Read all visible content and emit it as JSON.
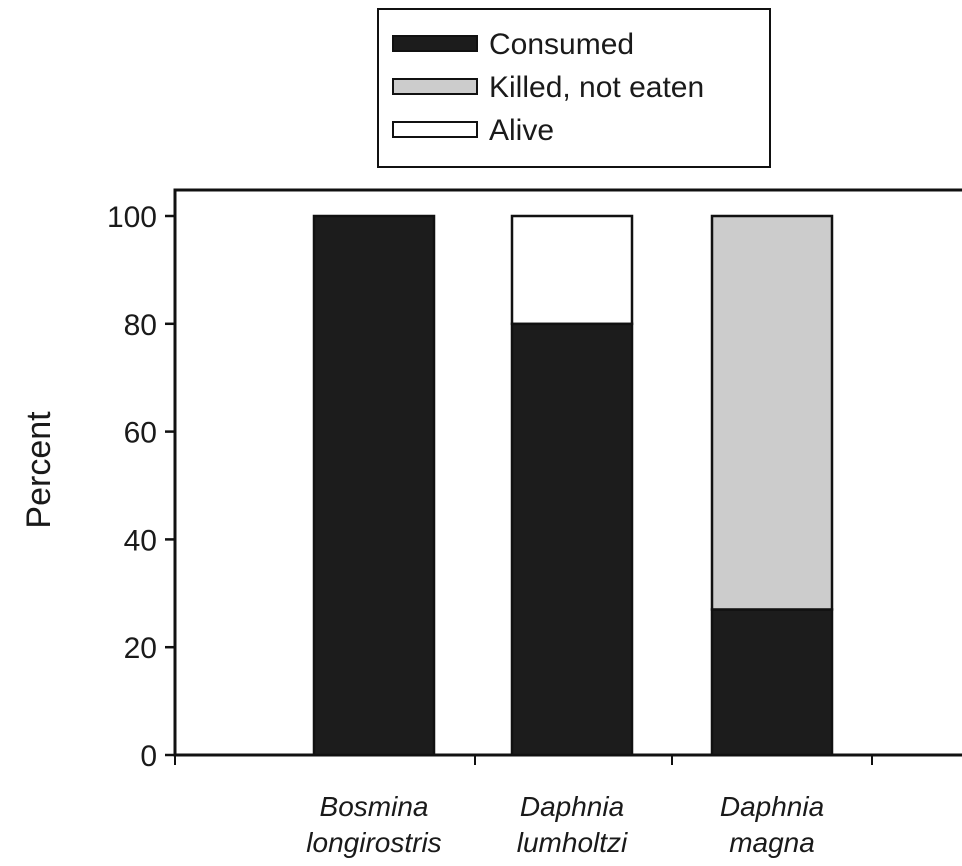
{
  "chart_data": {
    "type": "bar",
    "stacked": true,
    "title": "",
    "xlabel": "",
    "ylabel": "Percent",
    "ylim": [
      0,
      100
    ],
    "yticks": [
      "0",
      "20",
      "40",
      "60",
      "80",
      "100"
    ],
    "grid": false,
    "legend_position": "top-center",
    "categories": [
      [
        "Bosmina",
        "longirostris"
      ],
      [
        "Daphnia",
        "lumholtzi"
      ],
      [
        "Daphnia",
        "magna"
      ]
    ],
    "series": [
      {
        "name": "Consumed",
        "color": "#1c1c1c",
        "values": [
          100,
          80,
          27
        ]
      },
      {
        "name": "Killed, not eaten",
        "color": "#cccccc",
        "values": [
          0,
          0,
          73
        ]
      },
      {
        "name": "Alive",
        "color": "#ffffff",
        "values": [
          0,
          20,
          0
        ]
      }
    ]
  }
}
